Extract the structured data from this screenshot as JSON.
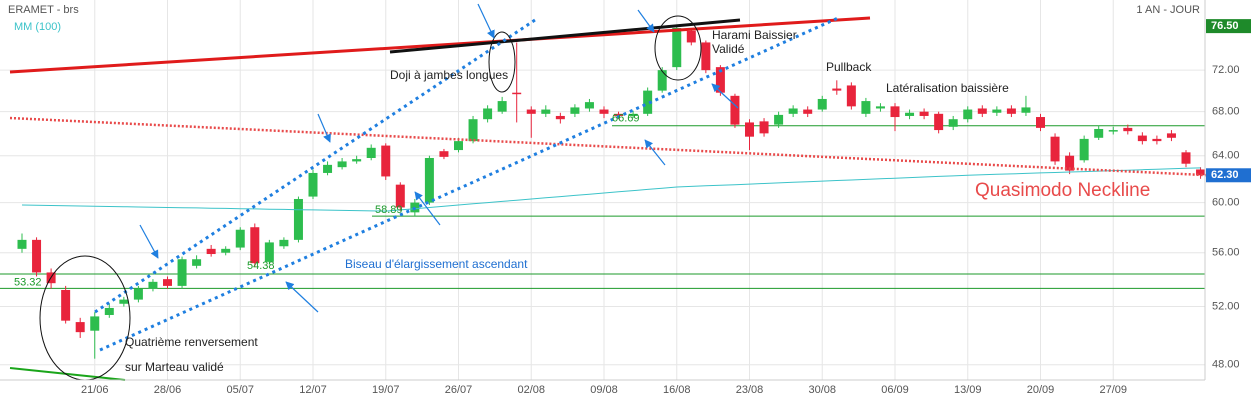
{
  "chart_data": {
    "type": "candlestick",
    "title": "ERAMET - brs",
    "period": "1 AN - JOUR",
    "categories": [
      null,
      null,
      null,
      null,
      null,
      "21/06",
      null,
      null,
      null,
      null,
      "28/06",
      null,
      null,
      null,
      null,
      "05/07",
      null,
      null,
      null,
      null,
      "12/07",
      null,
      null,
      null,
      null,
      "19/07",
      null,
      null,
      null,
      null,
      "26/07",
      null,
      null,
      null,
      null,
      "02/08",
      null,
      null,
      null,
      null,
      "09/08",
      null,
      null,
      null,
      null,
      "16/08",
      null,
      null,
      null,
      null,
      "23/08",
      null,
      null,
      null,
      null,
      "30/08",
      null,
      null,
      null,
      null,
      "06/09",
      null,
      null,
      null,
      null,
      "13/09",
      null,
      null,
      null,
      null,
      "20/09",
      null,
      null,
      null,
      null,
      "27/09",
      null,
      null,
      null,
      null,
      null,
      null
    ],
    "open": [
      56.3,
      57.0,
      54.5,
      53.2,
      50.9,
      50.3,
      51.4,
      52.2,
      52.5,
      53.3,
      54.0,
      53.5,
      55.0,
      56.3,
      56.0,
      56.4,
      58.0,
      55.3,
      56.5,
      57.0,
      60.5,
      62.5,
      63.0,
      63.5,
      63.8,
      64.9,
      61.5,
      59.2,
      60.0,
      64.4,
      64.5,
      65.3,
      67.3,
      68.0,
      69.8,
      68.2,
      67.8,
      67.6,
      67.8,
      68.3,
      68.2,
      67.8,
      67.6,
      67.8,
      70.0,
      72.3,
      76.0,
      74.8,
      72.3,
      69.5,
      67.0,
      67.1,
      66.8,
      67.8,
      68.2,
      68.2,
      70.2,
      70.5,
      67.8,
      68.3,
      68.5,
      67.6,
      68.0,
      67.8,
      66.6,
      67.3,
      68.3,
      67.9,
      68.3,
      67.9,
      67.5,
      65.7,
      64.0,
      63.6,
      65.6,
      66.2,
      66.5,
      65.8,
      65.5,
      66.0,
      64.3,
      62.8
    ],
    "high": [
      57.5,
      57.2,
      54.8,
      53.5,
      51.2,
      51.6,
      52.2,
      52.7,
      53.5,
      54.0,
      54.2,
      55.7,
      55.8,
      56.6,
      56.5,
      58.0,
      58.3,
      57.0,
      57.2,
      60.5,
      62.8,
      63.5,
      63.8,
      64.0,
      65.0,
      65.1,
      61.7,
      60.3,
      64.0,
      64.6,
      65.6,
      67.6,
      68.6,
      69.4,
      74.8,
      68.5,
      68.6,
      67.9,
      68.7,
      69.2,
      68.5,
      68.0,
      68.1,
      70.3,
      72.3,
      76.5,
      76.2,
      75.0,
      72.5,
      69.7,
      67.3,
      67.4,
      68.0,
      68.6,
      68.5,
      69.5,
      71.0,
      70.8,
      69.3,
      68.8,
      68.8,
      68.2,
      68.3,
      68.0,
      67.6,
      68.5,
      68.6,
      68.5,
      68.6,
      69.5,
      67.8,
      66.0,
      64.3,
      65.8,
      66.7,
      66.6,
      66.8,
      66.1,
      65.8,
      66.3,
      64.5,
      63.0
    ],
    "low": [
      56.0,
      54.2,
      53.3,
      50.8,
      49.8,
      48.4,
      51.2,
      52.0,
      52.3,
      53.1,
      53.3,
      53.3,
      54.8,
      55.7,
      55.8,
      56.2,
      54.9,
      55.1,
      56.3,
      56.8,
      60.3,
      62.3,
      62.8,
      63.3,
      63.6,
      61.9,
      59.3,
      58.9,
      59.8,
      63.7,
      64.3,
      65.1,
      67.0,
      67.8,
      67.0,
      65.6,
      67.5,
      66.9,
      67.5,
      68.0,
      67.4,
      67.3,
      67.4,
      67.6,
      69.8,
      72.0,
      74.5,
      71.7,
      69.5,
      66.5,
      64.5,
      65.7,
      66.5,
      67.5,
      67.5,
      68.0,
      69.6,
      68.2,
      67.5,
      68.0,
      66.2,
      67.3,
      67.3,
      66.0,
      66.3,
      67.0,
      67.5,
      67.6,
      67.5,
      67.6,
      66.2,
      63.2,
      62.4,
      63.4,
      65.4,
      65.9,
      65.9,
      65.0,
      65.0,
      65.3,
      63.0,
      62.0
    ],
    "close": [
      57.0,
      54.5,
      53.7,
      51.0,
      50.2,
      51.3,
      51.9,
      52.5,
      53.3,
      53.8,
      53.5,
      55.5,
      55.5,
      55.9,
      56.3,
      57.8,
      55.2,
      56.8,
      57.0,
      60.3,
      62.5,
      63.2,
      63.5,
      63.7,
      64.7,
      62.2,
      59.6,
      60.0,
      63.8,
      63.9,
      65.3,
      67.3,
      68.3,
      69.0,
      69.7,
      67.8,
      68.2,
      67.3,
      68.4,
      68.9,
      67.8,
      67.6,
      67.8,
      70.0,
      72.0,
      76.3,
      74.8,
      72.0,
      69.8,
      66.8,
      65.7,
      66.0,
      67.7,
      68.3,
      67.8,
      69.2,
      70.0,
      68.5,
      69.0,
      68.5,
      67.5,
      67.9,
      67.6,
      66.3,
      67.3,
      68.2,
      67.8,
      68.2,
      67.8,
      68.4,
      66.5,
      63.5,
      62.7,
      65.5,
      66.4,
      66.3,
      66.2,
      65.3,
      65.3,
      65.6,
      63.3,
      62.3
    ],
    "up_color": "#2dbd4e",
    "down_color": "#e8243c",
    "series": [
      {
        "name": "MM (100)",
        "color": "#3cc3c9",
        "values": [
          59.8,
          59.78,
          59.76,
          59.74,
          59.72,
          59.7,
          59.68,
          59.66,
          59.64,
          59.62,
          59.6,
          59.58,
          59.56,
          59.54,
          59.52,
          59.5,
          59.48,
          59.46,
          59.44,
          59.42,
          59.4,
          59.38,
          59.36,
          59.34,
          59.32,
          59.3,
          59.4,
          59.5,
          59.6,
          59.7,
          59.8,
          59.9,
          60.0,
          60.1,
          60.2,
          60.3,
          60.4,
          60.5,
          60.6,
          60.7,
          60.8,
          60.9,
          61.0,
          61.1,
          61.2,
          61.3,
          61.35,
          61.4,
          61.45,
          61.5,
          61.55,
          61.6,
          61.65,
          61.7,
          61.75,
          61.8,
          61.85,
          61.9,
          61.95,
          62.0,
          62.05,
          62.1,
          62.15,
          62.2,
          62.25,
          62.3,
          62.34,
          62.38,
          62.42,
          62.46,
          62.5,
          62.54,
          62.58,
          62.62,
          62.66,
          62.7,
          62.74,
          62.78,
          62.82,
          62.86,
          62.9,
          62.94
        ]
      }
    ],
    "ylim": [
      47,
      79.3
    ],
    "log_scale": true,
    "grid": true,
    "yticks": [
      {
        "value": 48,
        "label": "48.00"
      },
      {
        "value": 52,
        "label": "52.00"
      },
      {
        "value": 56,
        "label": "56.00"
      },
      {
        "value": 60,
        "label": "60.00"
      },
      {
        "value": 64,
        "label": "64.00"
      },
      {
        "value": 68,
        "label": "68.00"
      },
      {
        "value": 72,
        "label": "72.00"
      }
    ],
    "levels": [
      {
        "value": 53.32,
        "label": "53.32"
      },
      {
        "value": 54.38,
        "label": "54.38"
      },
      {
        "value": 58.89,
        "label": "58.89"
      },
      {
        "value": 66.69,
        "label": "66.69"
      }
    ],
    "level_color": "#1b9a2a",
    "price_labels": [
      {
        "value": 76.5,
        "label": "76.50",
        "color": "#1e8a2a"
      },
      {
        "value": 62.3,
        "label": "62.30",
        "color": "#1f6fd1"
      }
    ],
    "annotations": [
      "Doji à jambes longues",
      "Harami Baissier",
      "Validé",
      "Pullback",
      "Latéralisation baissière",
      "Quasimodo Neckline",
      "Biseau d'élargissement ascendant",
      "Quatrième renversement",
      "sur Marteau validé"
    ]
  }
}
